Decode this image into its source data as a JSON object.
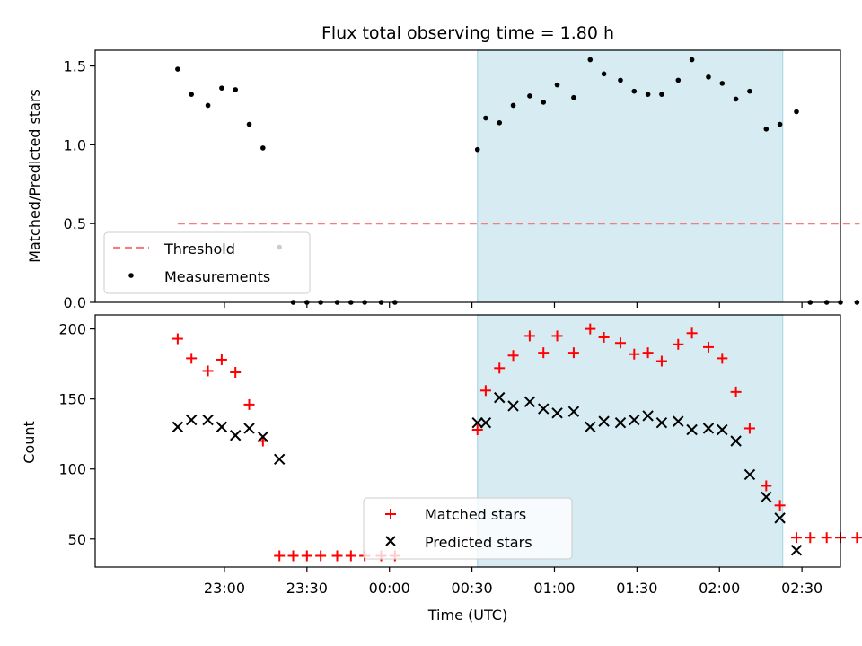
{
  "chart_data": [
    {
      "type": "scatter",
      "panel": "top",
      "title": "Flux total observing time = 1.80 h",
      "ylabel": "Matched/Predicted stars",
      "xlabel": "",
      "ylim": [
        0,
        1.6
      ],
      "yticks": [
        0.0,
        0.5,
        1.0,
        1.5
      ],
      "ytick_labels": [
        "0.0",
        "0.5",
        "1.0",
        "1.5"
      ],
      "x_unit": "minutes after 23:00 UTC",
      "xlim": [
        -47,
        224
      ],
      "xticks": [
        0,
        30,
        60,
        90,
        120,
        150,
        180,
        210
      ],
      "grid": false,
      "legend_position": "lower-left",
      "shaded_interval": [
        92,
        203
      ],
      "shade_color": "#add8e6",
      "threshold": {
        "name": "Threshold",
        "value": 0.5,
        "x_range": [
          -17,
          231
        ],
        "color": "#f08080"
      },
      "series": [
        {
          "name": "Measurements",
          "color": "#000000",
          "marker": "dot",
          "x": [
            -17,
            -12,
            -6,
            -1,
            4,
            9,
            14,
            20,
            25,
            30,
            35,
            41,
            46,
            51,
            57,
            62,
            92,
            95,
            100,
            105,
            111,
            116,
            121,
            127,
            133,
            138,
            144,
            149,
            154,
            159,
            165,
            170,
            176,
            181,
            186,
            191,
            197,
            202,
            208,
            213,
            219,
            224,
            230
          ],
          "y": [
            1.48,
            1.32,
            1.25,
            1.36,
            1.35,
            1.13,
            0.98,
            0.35,
            0.0,
            0.0,
            0.0,
            0.0,
            0.0,
            0.0,
            0.0,
            0.0,
            0.97,
            1.17,
            1.14,
            1.25,
            1.31,
            1.27,
            1.38,
            1.3,
            1.54,
            1.45,
            1.41,
            1.34,
            1.32,
            1.32,
            1.41,
            1.54,
            1.43,
            1.39,
            1.29,
            1.34,
            1.1,
            1.13,
            1.21,
            0.0,
            0.0,
            0.0,
            0.0
          ]
        }
      ]
    },
    {
      "type": "scatter",
      "panel": "bottom",
      "xlabel": "Time (UTC)",
      "ylabel": "Count",
      "ylim": [
        30,
        210
      ],
      "yticks": [
        50,
        100,
        150,
        200
      ],
      "ytick_labels": [
        "50",
        "100",
        "150",
        "200"
      ],
      "x_unit": "minutes after 23:00 UTC",
      "xlim": [
        -47,
        224
      ],
      "xticks": [
        0,
        30,
        60,
        90,
        120,
        150,
        180,
        210
      ],
      "xtick_labels": [
        "23:00",
        "23:30",
        "00:00",
        "00:30",
        "01:00",
        "01:30",
        "02:00",
        "02:30"
      ],
      "grid": false,
      "legend_position": "lower-center",
      "shaded_interval": [
        92,
        203
      ],
      "shade_color": "#add8e6",
      "series": [
        {
          "name": "Matched stars",
          "color": "#ff0000",
          "marker": "plus",
          "x": [
            -17,
            -12,
            -6,
            -1,
            4,
            9,
            14,
            20,
            25,
            30,
            35,
            41,
            46,
            51,
            57,
            62,
            92,
            95,
            100,
            105,
            111,
            116,
            121,
            127,
            133,
            138,
            144,
            149,
            154,
            159,
            165,
            170,
            176,
            181,
            186,
            191,
            197,
            202,
            208,
            213,
            219,
            224,
            230
          ],
          "y": [
            193,
            179,
            170,
            178,
            169,
            146,
            120,
            38,
            38,
            38,
            38,
            38,
            38,
            38,
            38,
            38,
            128,
            156,
            172,
            181,
            195,
            183,
            195,
            183,
            200,
            194,
            190,
            182,
            183,
            177,
            189,
            197,
            187,
            179,
            155,
            129,
            88,
            74,
            51,
            51,
            51,
            51,
            51
          ]
        },
        {
          "name": "Predicted stars",
          "color": "#000000",
          "marker": "x",
          "x": [
            -17,
            -12,
            -6,
            -1,
            4,
            9,
            14,
            20,
            92,
            95,
            100,
            105,
            111,
            116,
            121,
            127,
            133,
            138,
            144,
            149,
            154,
            159,
            165,
            170,
            176,
            181,
            186,
            191,
            197,
            202,
            208
          ],
          "y": [
            130,
            135,
            135,
            130,
            124,
            129,
            123,
            107,
            133,
            133,
            151,
            145,
            148,
            143,
            140,
            141,
            130,
            134,
            133,
            135,
            138,
            133,
            134,
            128,
            129,
            128,
            120,
            96,
            80,
            65,
            42
          ]
        }
      ]
    }
  ]
}
